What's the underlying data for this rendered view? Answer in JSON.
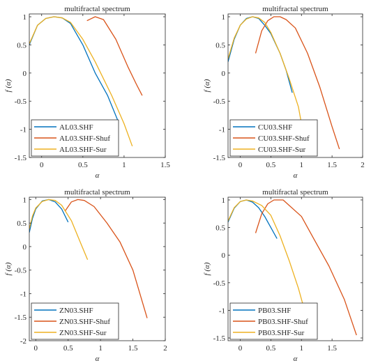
{
  "colors": {
    "series_blue": "#0072BD",
    "series_orange": "#D95319",
    "series_yellow": "#EDB120",
    "axis": "#262626",
    "legend_border": "#262626"
  },
  "chart_data": [
    {
      "type": "line",
      "title": "multifractal spectrum",
      "xlabel": "α",
      "ylabel": "f (α)",
      "xlim": [
        -0.15,
        1.5
      ],
      "ylim": [
        -1.5,
        1.05
      ],
      "xticks": [
        0,
        0.5,
        1,
        1.5
      ],
      "xtick_labels": [
        "0",
        "0.5",
        "1",
        "1.5"
      ],
      "yticks": [
        -1.5,
        -1,
        -0.5,
        0,
        0.5,
        1
      ],
      "ytick_labels": [
        "-1.5",
        "-1",
        "-0.5",
        "0",
        "0.5",
        "1"
      ],
      "grid": false,
      "legend_position": "bottom-left",
      "series": [
        {
          "name": "AL03.SHF",
          "color": "#0072BD",
          "x": [
            -0.15,
            -0.05,
            0.05,
            0.15,
            0.25,
            0.35,
            0.5,
            0.65,
            0.8,
            0.92
          ],
          "y": [
            0.5,
            0.85,
            0.97,
            1.0,
            0.98,
            0.88,
            0.5,
            0.0,
            -0.4,
            -0.83
          ]
        },
        {
          "name": "AL03.SHF-Shuf",
          "color": "#D95319",
          "x": [
            0.55,
            0.65,
            0.75,
            0.9,
            1.05,
            1.15,
            1.22
          ],
          "y": [
            0.93,
            1.0,
            0.95,
            0.6,
            0.1,
            -0.2,
            -0.4
          ]
        },
        {
          "name": "AL03.SHF-Sur",
          "color": "#EDB120",
          "x": [
            -0.15,
            -0.05,
            0.05,
            0.15,
            0.25,
            0.35,
            0.5,
            0.65,
            0.85,
            1.0,
            1.1
          ],
          "y": [
            0.52,
            0.85,
            0.97,
            1.0,
            0.98,
            0.9,
            0.6,
            0.2,
            -0.4,
            -0.9,
            -1.3
          ]
        }
      ]
    },
    {
      "type": "line",
      "title": "multifractal spectrum",
      "xlabel": "α",
      "ylabel": "f (α)",
      "xlim": [
        -0.2,
        2.0
      ],
      "ylim": [
        -1.5,
        1.05
      ],
      "xticks": [
        0,
        0.5,
        1,
        1.5,
        2
      ],
      "xtick_labels": [
        "0",
        "0.5",
        "1",
        "1.5",
        "2"
      ],
      "yticks": [
        -1.5,
        -1,
        -0.5,
        0,
        0.5,
        1
      ],
      "ytick_labels": [
        "-1.5",
        "-1",
        "-0.5",
        "0",
        "0.5",
        "1"
      ],
      "grid": false,
      "legend_position": "bottom-left",
      "series": [
        {
          "name": "CU03.SHF",
          "color": "#0072BD",
          "x": [
            -0.2,
            -0.1,
            0.0,
            0.1,
            0.2,
            0.3,
            0.4,
            0.5,
            0.65,
            0.75,
            0.85
          ],
          "y": [
            0.2,
            0.6,
            0.85,
            0.97,
            1.0,
            0.97,
            0.85,
            0.7,
            0.35,
            0.05,
            -0.35
          ]
        },
        {
          "name": "CU03.SHF-Shuf",
          "color": "#D95319",
          "x": [
            0.25,
            0.35,
            0.45,
            0.55,
            0.65,
            0.75,
            0.9,
            1.1,
            1.3,
            1.5,
            1.62
          ],
          "y": [
            0.35,
            0.75,
            0.93,
            1.0,
            1.0,
            0.95,
            0.8,
            0.35,
            -0.25,
            -0.95,
            -1.35
          ]
        },
        {
          "name": "CU03.SHF-Sur",
          "color": "#EDB120",
          "x": [
            -0.2,
            -0.1,
            0.0,
            0.1,
            0.2,
            0.3,
            0.4,
            0.5,
            0.65,
            0.8,
            0.95,
            1.0
          ],
          "y": [
            0.25,
            0.62,
            0.85,
            0.96,
            1.0,
            0.98,
            0.9,
            0.72,
            0.35,
            -0.1,
            -0.6,
            -0.9
          ]
        }
      ]
    },
    {
      "type": "line",
      "title": "multifractal spectrum",
      "xlabel": "α",
      "ylabel": "f (α)",
      "xlim": [
        -0.1,
        2.0
      ],
      "ylim": [
        -2.0,
        1.05
      ],
      "xticks": [
        0,
        0.5,
        1,
        1.5,
        2
      ],
      "xtick_labels": [
        "0",
        "0.5",
        "1",
        "1.5",
        "2"
      ],
      "yticks": [
        -2,
        -1.5,
        -1,
        -0.5,
        0,
        0.5,
        1
      ],
      "ytick_labels": [
        "-2",
        "-1.5",
        "-1",
        "-0.5",
        "0",
        "0.5",
        "1"
      ],
      "grid": false,
      "legend_position": "bottom-left",
      "series": [
        {
          "name": "ZN03.SHF",
          "color": "#0072BD",
          "x": [
            -0.1,
            -0.05,
            0.0,
            0.1,
            0.2,
            0.3,
            0.4,
            0.5
          ],
          "y": [
            0.3,
            0.6,
            0.8,
            0.97,
            1.0,
            0.95,
            0.8,
            0.52
          ]
        },
        {
          "name": "ZN03.SHF-Shuf",
          "color": "#D95319",
          "x": [
            0.45,
            0.55,
            0.65,
            0.75,
            0.9,
            1.1,
            1.3,
            1.5,
            1.72
          ],
          "y": [
            0.75,
            0.95,
            1.0,
            0.98,
            0.85,
            0.5,
            0.1,
            -0.5,
            -1.52
          ]
        },
        {
          "name": "ZN03.SHF-Sur",
          "color": "#EDB120",
          "x": [
            -0.1,
            -0.05,
            0.0,
            0.1,
            0.2,
            0.3,
            0.4,
            0.55,
            0.7,
            0.8
          ],
          "y": [
            0.38,
            0.65,
            0.82,
            0.96,
            1.0,
            0.98,
            0.88,
            0.55,
            0.05,
            -0.28
          ]
        }
      ]
    },
    {
      "type": "line",
      "title": "multifractal spectrum",
      "xlabel": "α",
      "ylabel": "f (α)",
      "xlim": [
        -0.2,
        2.0
      ],
      "ylim": [
        -1.55,
        1.05
      ],
      "xticks": [
        0,
        0.5,
        1,
        1.5
      ],
      "xtick_labels": [
        "0",
        "0.5",
        "1",
        "1.5"
      ],
      "yticks": [
        -1.5,
        -1,
        -0.5,
        0,
        0.5,
        1
      ],
      "ytick_labels": [
        "-1.5",
        "-1",
        "-0.5",
        "0",
        "0.5",
        "1"
      ],
      "grid": false,
      "legend_position": "bottom-left",
      "series": [
        {
          "name": "PB03.SHF",
          "color": "#0072BD",
          "x": [
            -0.2,
            -0.1,
            0.0,
            0.1,
            0.2,
            0.3,
            0.4,
            0.5,
            0.6
          ],
          "y": [
            0.6,
            0.85,
            0.97,
            1.0,
            0.96,
            0.86,
            0.7,
            0.5,
            0.3
          ]
        },
        {
          "name": "PB03.SHF-Shuf",
          "color": "#D95319",
          "x": [
            0.25,
            0.35,
            0.45,
            0.55,
            0.7,
            1.0,
            1.2,
            1.45,
            1.7,
            1.9
          ],
          "y": [
            0.4,
            0.75,
            0.93,
            1.0,
            1.0,
            0.7,
            0.3,
            -0.2,
            -0.8,
            -1.45
          ]
        },
        {
          "name": "PB03.SHF-Sur",
          "color": "#EDB120",
          "x": [
            -0.2,
            -0.1,
            0.0,
            0.1,
            0.2,
            0.35,
            0.5,
            0.65,
            0.8,
            0.95,
            1.05
          ],
          "y": [
            0.62,
            0.86,
            0.97,
            1.0,
            0.98,
            0.9,
            0.72,
            0.35,
            -0.1,
            -0.6,
            -1.0
          ]
        }
      ]
    }
  ]
}
